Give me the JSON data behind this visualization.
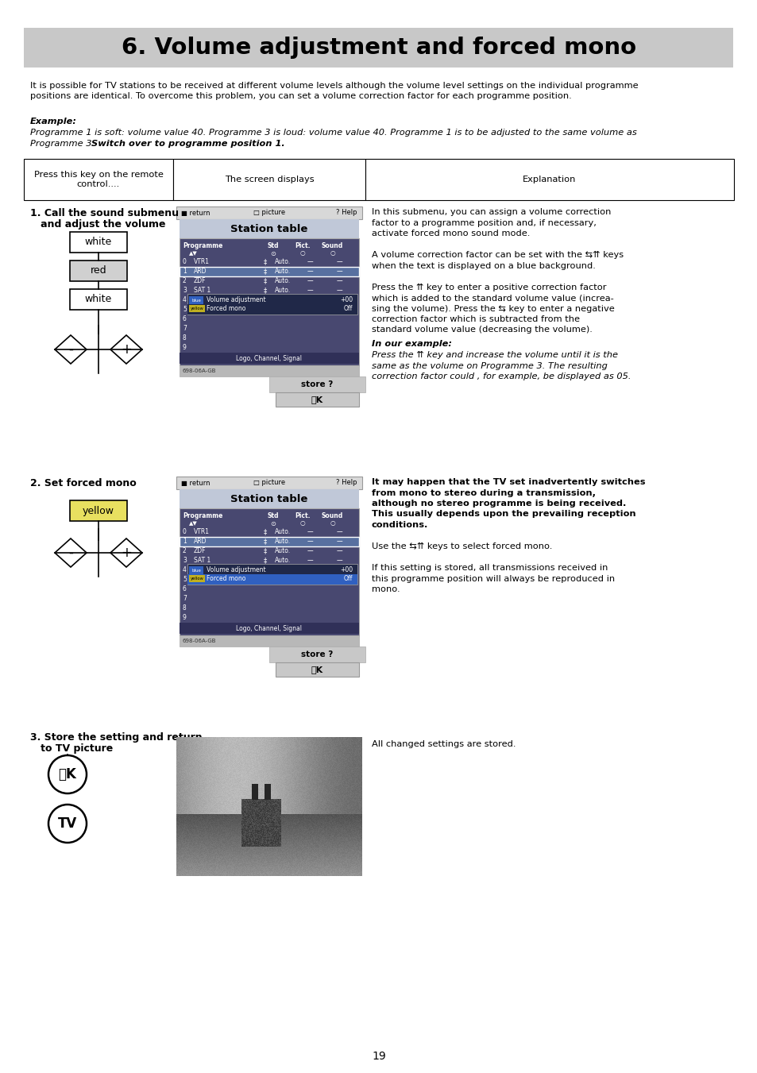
{
  "title": "6. Volume adjustment and forced mono",
  "title_bg": "#c8c8c8",
  "page_bg": "#ffffff",
  "intro_line1": "It is possible for TV stations to be received at different volume levels although the volume level settings on the individual programme",
  "intro_line2": "positions are identical. To overcome this problem, you can set a volume correction factor for each programme position.",
  "example_label": "Example:",
  "example_line1": "Programme 1 is soft: volume value 40. Programme 3 is loud: volume value 40. Programme 1 is to be adjusted to the same volume as",
  "example_line2_italic": "Programme 3. ",
  "example_line2_bold": "Switch over to programme position 1.",
  "col1_header": "Press this key on the remote\ncontrol....",
  "col2_header": "The screen displays",
  "col3_header": "Explanation",
  "section1_label_1": "1. Call the sound submenu",
  "section1_label_2": "   and adjust the volume",
  "section2_label": "2. Set forced mono",
  "section3_label_1": "3. Store the setting and return",
  "section3_label_2": "   to TV picture",
  "section3_text": "All changed settings are stored.",
  "page_number": "19",
  "col3_s1_lines": [
    "In this submenu, you can assign a volume correction",
    "factor to a programme position and, if necessary,",
    "activate forced mono sound mode.",
    "",
    "A volume correction factor can be set with the ⇆⇈ keys",
    "when the text is displayed on a blue background.",
    "",
    "Press the ⇈ key to enter a positive correction factor",
    "which is added to the standard volume value (increa-",
    "sing the volume). Press the ⇆ key to enter a negative",
    "correction factor which is subtracted from the",
    "standard volume value (decreasing the volume)."
  ],
  "in_our_example": "In our example:",
  "col3_example_lines": [
    "Press the ⇈ key and increase the volume until it is the",
    "same as the volume on Programme 3. The resulting",
    "correction factor could , for example, be displayed as 05."
  ],
  "col3_s2_bold_lines": [
    "It may happen that the TV set inadvertently switches",
    "from mono to stereo during a transmission,",
    "although no stereo programme is being received.",
    "This usually depends upon the prevailing reception",
    "conditions."
  ],
  "col3_s2_normal_lines": [
    "",
    "Use the ⇆⇈ keys to select forced mono.",
    "",
    "If this setting is stored, all transmissions received in",
    "this programme position will always be reproduced in",
    "mono."
  ],
  "channels": [
    [
      "0",
      "VTR1"
    ],
    [
      "1",
      "ARD"
    ],
    [
      "2",
      "ZDF"
    ],
    [
      "3",
      "SAT 1"
    ]
  ],
  "screen_serial_1": "698-06A-GB",
  "screen_serial_2": "698-06A-GB"
}
